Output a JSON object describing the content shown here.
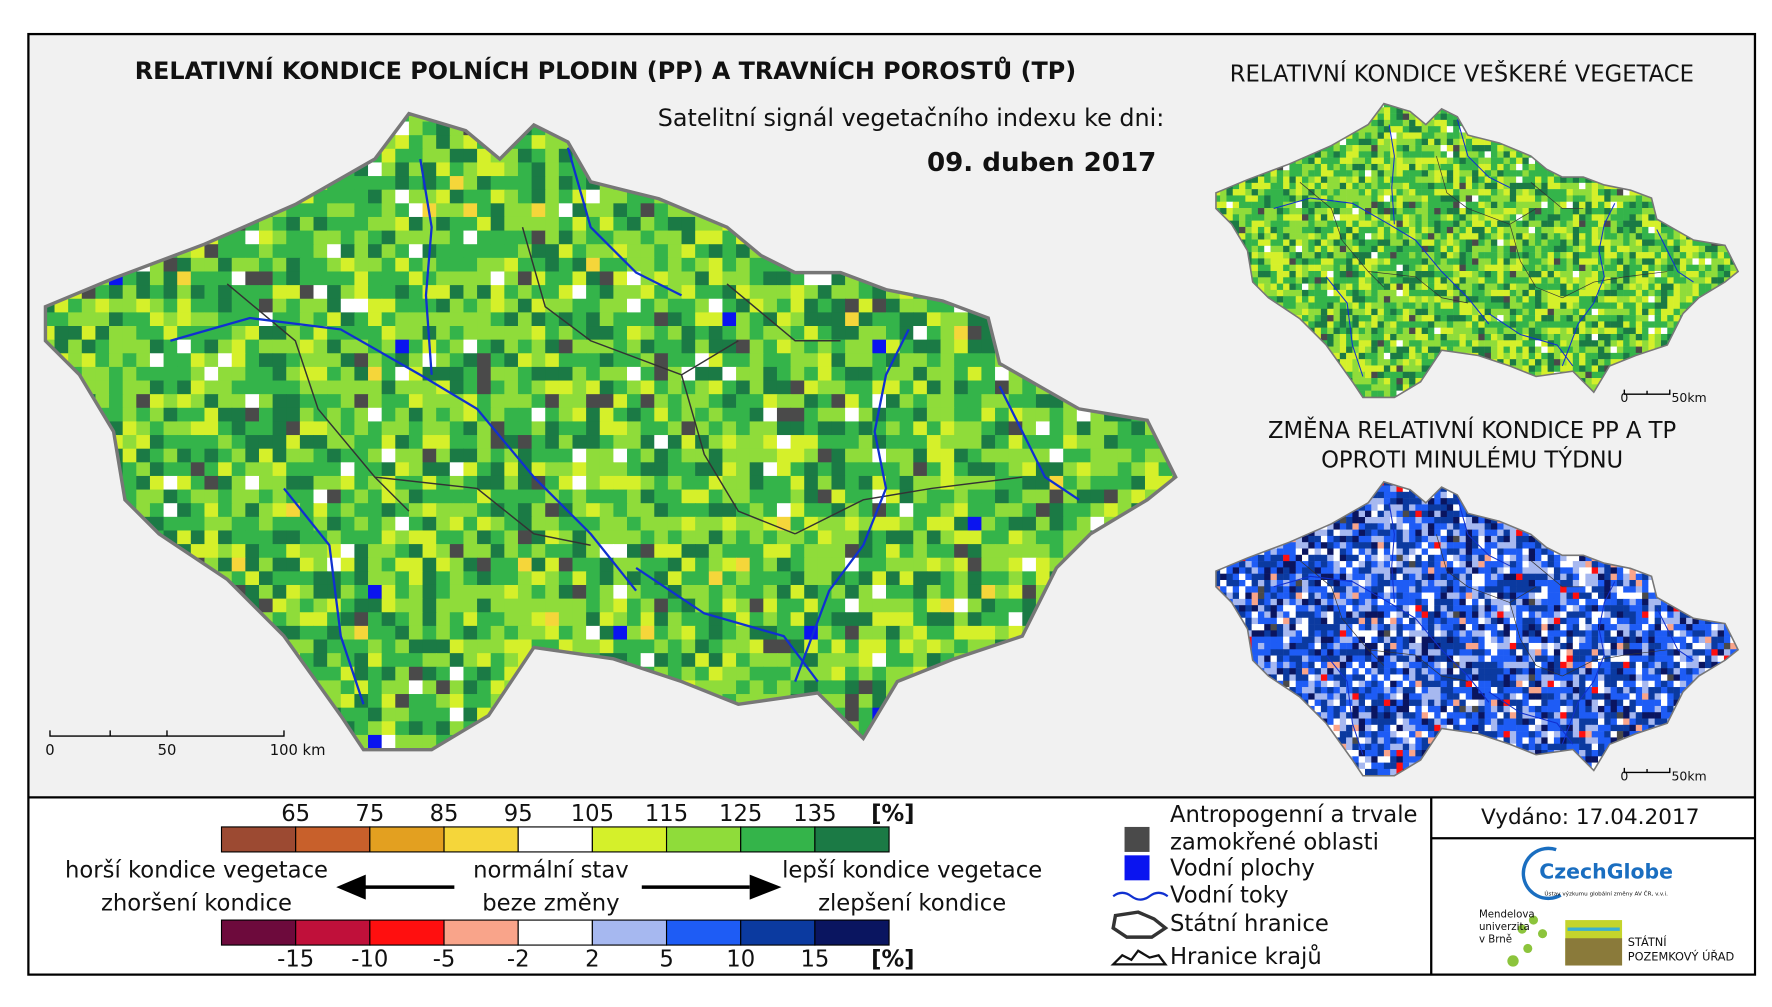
{
  "header": {
    "title": "RELATIVNÍ KONDICE POLNÍCH PLODIN (PP) A TRAVNÍCH POROSTŮ (TP)",
    "subtitle": "Satelitní signál vegetačního indexu ke dni:",
    "date": "09. duben 2017"
  },
  "main_scale": [
    "0",
    "50",
    "100 km"
  ],
  "inset_maps": [
    {
      "title_lines": [
        "RELATIVNÍ KONDICE VEŠKERÉ VEGETACE"
      ],
      "scale": [
        "0",
        "50km"
      ]
    },
    {
      "title_lines": [
        "ZMĚNA RELATIVNÍ KONDICE PP A TP",
        "OPROTI MINULÉMU TÝDNU"
      ],
      "scale": [
        "0",
        "50km"
      ]
    }
  ],
  "legend": {
    "condition": {
      "labels": [
        "65",
        "75",
        "85",
        "95",
        "105",
        "115",
        "125",
        "135"
      ],
      "unit": "[%]",
      "colors": [
        "#9c4a32",
        "#c8602b",
        "#e3a020",
        "#f5d63a",
        "#ffffff",
        "#d5f02a",
        "#8fdc3a",
        "#34b44a",
        "#1b7a45"
      ]
    },
    "change": {
      "labels": [
        "-15",
        "-10",
        "-5",
        "-2",
        "2",
        "5",
        "10",
        "15"
      ],
      "unit": "[%]",
      "colors": [
        "#6d0a3c",
        "#c0103a",
        "#ff0f0f",
        "#f9a48a",
        "#ffffff",
        "#a6b8f0",
        "#1e5cf5",
        "#0b3aa0",
        "#0a1560"
      ]
    },
    "worse": [
      "horší kondice vegetace",
      "zhoršení kondice"
    ],
    "normal": [
      "normální stav",
      "beze změny"
    ],
    "better": [
      "lepší kondice vegetace",
      "zlepšení kondice"
    ]
  },
  "symbols": [
    {
      "label_lines": [
        "Antropogenní a trvale",
        "zamokřené oblasti"
      ],
      "color": "#4a4a4a"
    },
    {
      "label_lines": [
        "Vodní plochy"
      ],
      "color": "#0a14f0"
    },
    {
      "label_lines": [
        "Vodní toky"
      ],
      "color": "#1030d0"
    },
    {
      "label_lines": [
        "Státní hranice"
      ],
      "color": "#333333"
    },
    {
      "label_lines": [
        "Hranice krajů"
      ],
      "color": "#111111"
    }
  ],
  "issued": "Vydáno: 17.04.2017",
  "logos": {
    "czechglobe": "CzechGlobe",
    "czechglobe_sub": "Ústav výzkumu globální změny AV ČR, v.v.i.",
    "mendel": [
      "Mendelova",
      "univerzita",
      "v Brně"
    ],
    "spu": [
      "STÁTNÍ",
      "POZEMKOVÝ ÚŘAD"
    ]
  }
}
